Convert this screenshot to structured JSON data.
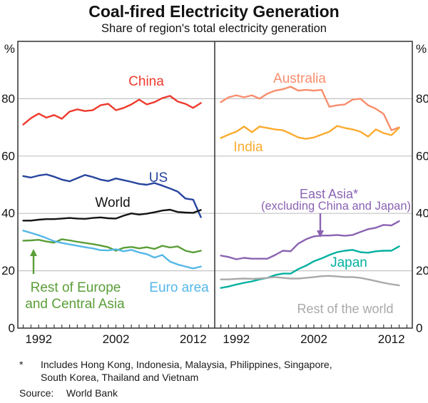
{
  "chart": {
    "title": "Coal-fired Electricity Generation",
    "subtitle": "Share of region's total electricity generation"
  },
  "footnote": {
    "marker": "*",
    "line1": "Includes Hong Kong, Indonesia, Malaysia, Philippines, Singapore,",
    "line2": "South Korea, Thailand and Vietnam",
    "source_label": "Source:",
    "source_value": "World Bank"
  },
  "chart_data": {
    "type": "line",
    "title": "Coal-fired Electricity Generation",
    "subtitle": "Share of region's total electricity generation",
    "unit": "%",
    "ylim": [
      0,
      100
    ],
    "yticks": [
      0,
      20,
      40,
      60,
      80
    ],
    "grid": true,
    "x_start_year": 1990,
    "x_tick_year_min": 1990,
    "x_tick_year_max": 2014,
    "x_label_years": [
      "1992",
      "2002",
      "2012"
    ],
    "panels": [
      {
        "name": "left-panel",
        "series": [
          {
            "name": "China",
            "label_lines": [
              "China"
            ],
            "color": "#ee3a2d",
            "values": [
              71,
              73.2,
              74.8,
              73.4,
              74.3,
              73,
              75.5,
              76.3,
              75.7,
              76,
              77.7,
              78.2,
              76,
              76.8,
              78,
              79.7,
              78,
              78.8,
              80.2,
              81,
              79,
              78.2,
              76.8,
              78.5
            ]
          },
          {
            "name": "US",
            "label_lines": [
              "US"
            ],
            "color": "#27449e",
            "values": [
              53,
              52.5,
              53.2,
              53.6,
              52.8,
              51.8,
              51.2,
              52.3,
              53.4,
              52.7,
              51.8,
              51.3,
              52.2,
              51.6,
              51,
              50.3,
              50,
              50.6,
              49.7,
              48.7,
              47.6,
              45.2,
              44.8,
              38.7
            ]
          },
          {
            "name": "World",
            "label_lines": [
              "World"
            ],
            "color": "#141414",
            "values": [
              37.5,
              37.5,
              37.8,
              38,
              38,
              38.2,
              38.4,
              38.2,
              38.1,
              38.4,
              38.6,
              38.3,
              38.2,
              39.2,
              40,
              39.6,
              39.9,
              40.4,
              41,
              41.3,
              40.5,
              40.3,
              40.2,
              41.2
            ]
          },
          {
            "name": "Rest of Europe and Central Asia",
            "label_lines": [
              "Rest of Europe",
              "and Central Asia"
            ],
            "color": "#5a9e38",
            "values": [
              30.5,
              30.6,
              30.8,
              30.2,
              29.8,
              31,
              30.6,
              30.1,
              29.7,
              29.3,
              28.8,
              28.2,
              27,
              28,
              28.3,
              27.8,
              28.2,
              27.6,
              28.7,
              28.1,
              28.5,
              27,
              26.4,
              27
            ]
          },
          {
            "name": "Euro area",
            "label_lines": [
              "Euro area"
            ],
            "color": "#54b7e9",
            "values": [
              34,
              33.2,
              32.4,
              31.4,
              30.3,
              29.7,
              29.2,
              28.7,
              28.2,
              27.8,
              27.2,
              27.1,
              27.5,
              26.8,
              27.3,
              26.4,
              25.8,
              24.6,
              25.5,
              23.2,
              22.2,
              21.5,
              20.8,
              21.5
            ]
          }
        ]
      },
      {
        "name": "right-panel",
        "series": [
          {
            "name": "Australia",
            "label_lines": [
              "Australia"
            ],
            "color": "#f78e6d",
            "values": [
              78.8,
              80.5,
              81.2,
              80.5,
              81.2,
              80,
              81.8,
              82.8,
              83.3,
              84.2,
              82.8,
              83.1,
              82.8,
              83.1,
              77.2,
              77.7,
              78,
              79.7,
              80,
              77.7,
              76.5,
              74.7,
              69,
              70
            ]
          },
          {
            "name": "India",
            "label_lines": [
              "India"
            ],
            "color": "#fbab2f",
            "values": [
              66.3,
              67.5,
              68.5,
              70.3,
              68.3,
              70.3,
              69.8,
              69.3,
              69,
              67.8,
              66.5,
              66,
              66.5,
              67.5,
              68.5,
              70.5,
              69.8,
              69.3,
              68.5,
              66.8,
              69.3,
              68,
              67.3,
              69.8
            ]
          },
          {
            "name": "East Asia* (excluding China and Japan)",
            "label_lines": [
              "East Asia*",
              "(excluding China and Japan)"
            ],
            "color": "#8a63b2",
            "values": [
              25.3,
              24.8,
              24,
              24.5,
              24.2,
              24.2,
              24.2,
              25.5,
              27,
              26.8,
              29.5,
              31,
              32,
              32.3,
              32.3,
              32.5,
              32.2,
              32.5,
              33.5,
              34.5,
              35,
              36,
              35.8,
              37.3
            ]
          },
          {
            "name": "Japan",
            "label_lines": [
              "Japan"
            ],
            "color": "#02b0a0",
            "values": [
              14,
              14.5,
              15.2,
              15.8,
              16.3,
              17,
              17.5,
              18.5,
              19,
              19,
              20.6,
              21.8,
              23.3,
              24.3,
              25.5,
              26.5,
              27,
              27.3,
              26.5,
              26.3,
              26.8,
              27,
              27,
              28.5
            ]
          },
          {
            "name": "Rest of the world",
            "label_lines": [
              "Rest of the world"
            ],
            "color": "#a9a9a9",
            "values": [
              17,
              17,
              17.2,
              17.3,
              17.2,
              17.3,
              17.5,
              17.8,
              17.5,
              17.3,
              17.3,
              17.5,
              17.8,
              18.1,
              18.2,
              18,
              17.8,
              17.8,
              17.5,
              17,
              16.4,
              15.8,
              15.3,
              14.9
            ]
          }
        ]
      }
    ],
    "colors": {
      "frame": "#3d3d3d",
      "grid": "#c3c3c3",
      "text": "#121212"
    }
  }
}
